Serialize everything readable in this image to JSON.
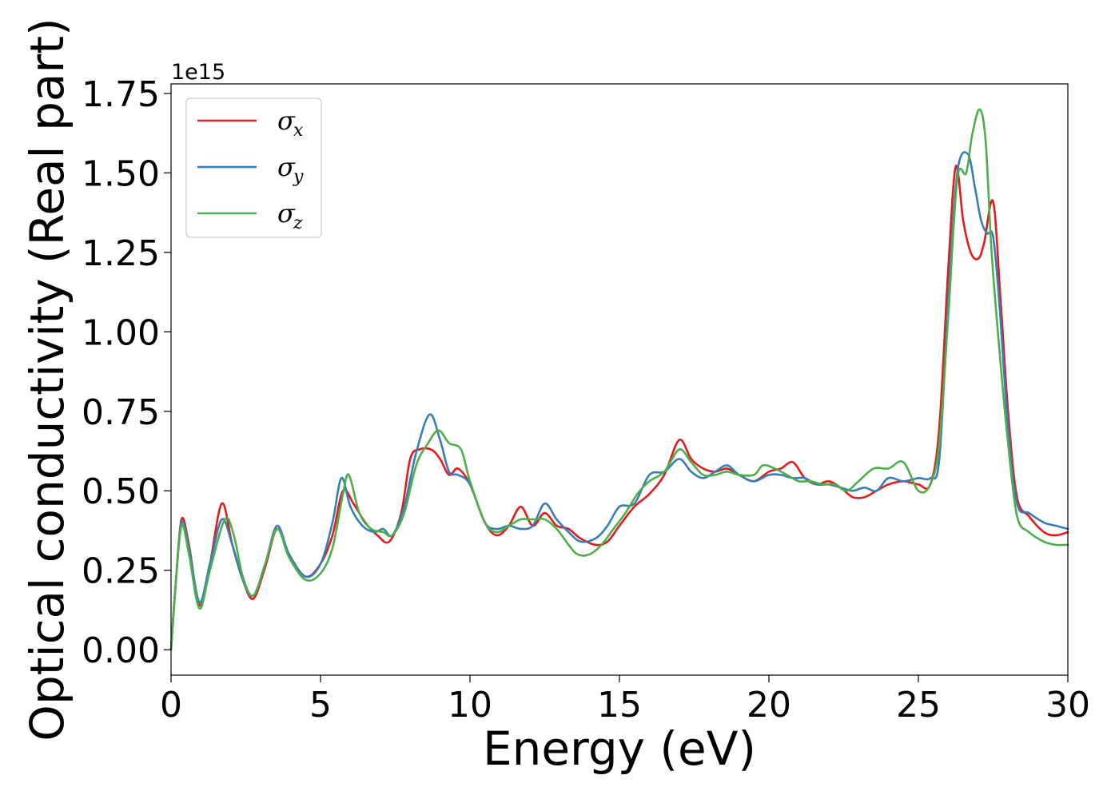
{
  "chart_data": {
    "type": "line",
    "xlabel": "Energy (eV)",
    "ylabel": "Optical conductivity (Real part)",
    "y_offset_text": "1e15",
    "y_scale_factor": 1000000000000000.0,
    "xlim": [
      0,
      30
    ],
    "ylim": [
      -0.08,
      1.78
    ],
    "x_ticks": [
      0,
      5,
      10,
      15,
      20,
      25,
      30
    ],
    "x_tick_labels": [
      "0",
      "5",
      "10",
      "15",
      "20",
      "25",
      "30"
    ],
    "y_ticks": [
      0.0,
      0.25,
      0.5,
      0.75,
      1.0,
      1.25,
      1.5,
      1.75
    ],
    "y_tick_labels": [
      "0.00",
      "0.25",
      "0.50",
      "0.75",
      "1.00",
      "1.25",
      "1.50",
      "1.75"
    ],
    "grid": false,
    "legend_position": "top-left",
    "series": [
      {
        "name": "σ_x",
        "label_symbol": "σ",
        "label_sub": "x",
        "color": "#e41a1c",
        "x": [
          0,
          0.15,
          0.35,
          0.6,
          0.95,
          1.3,
          1.7,
          2.05,
          2.4,
          2.75,
          3.15,
          3.55,
          3.95,
          4.5,
          5.0,
          5.4,
          5.75,
          6.1,
          6.5,
          6.9,
          7.3,
          7.7,
          8.0,
          8.3,
          8.7,
          9.0,
          9.3,
          9.6,
          10.0,
          10.5,
          10.9,
          11.3,
          11.7,
          12.1,
          12.5,
          12.9,
          13.3,
          13.7,
          14.2,
          14.6,
          15.0,
          15.5,
          16.0,
          16.5,
          17.0,
          17.4,
          17.8,
          18.2,
          18.6,
          19.0,
          19.5,
          20.0,
          20.4,
          20.8,
          21.2,
          21.6,
          22.0,
          22.4,
          22.8,
          23.2,
          23.6,
          24.0,
          24.5,
          25.0,
          25.4,
          25.7,
          26.0,
          26.25,
          26.5,
          26.75,
          27.0,
          27.2,
          27.5,
          27.75,
          28.0,
          28.3,
          28.7,
          29.2,
          29.6,
          30.0
        ],
        "y": [
          0.0,
          0.2,
          0.41,
          0.33,
          0.14,
          0.27,
          0.46,
          0.33,
          0.22,
          0.16,
          0.26,
          0.38,
          0.3,
          0.23,
          0.27,
          0.36,
          0.5,
          0.46,
          0.4,
          0.36,
          0.34,
          0.43,
          0.6,
          0.63,
          0.63,
          0.6,
          0.55,
          0.57,
          0.52,
          0.4,
          0.36,
          0.39,
          0.45,
          0.39,
          0.43,
          0.39,
          0.38,
          0.35,
          0.33,
          0.34,
          0.39,
          0.45,
          0.49,
          0.55,
          0.66,
          0.6,
          0.57,
          0.56,
          0.57,
          0.55,
          0.53,
          0.56,
          0.57,
          0.59,
          0.54,
          0.52,
          0.53,
          0.51,
          0.48,
          0.48,
          0.5,
          0.52,
          0.53,
          0.52,
          0.52,
          0.7,
          1.2,
          1.52,
          1.35,
          1.25,
          1.23,
          1.28,
          1.41,
          1.1,
          0.75,
          0.48,
          0.42,
          0.37,
          0.36,
          0.37
        ]
      },
      {
        "name": "σ_y",
        "label_symbol": "σ",
        "label_sub": "y",
        "color": "#377eb8",
        "x": [
          0,
          0.15,
          0.35,
          0.6,
          0.95,
          1.3,
          1.7,
          2.05,
          2.4,
          2.75,
          3.15,
          3.55,
          3.95,
          4.5,
          5.0,
          5.4,
          5.7,
          6.0,
          6.4,
          6.8,
          7.1,
          7.4,
          7.8,
          8.2,
          8.65,
          9.0,
          9.3,
          9.6,
          10.0,
          10.5,
          10.9,
          11.3,
          11.7,
          12.1,
          12.5,
          12.9,
          13.3,
          13.7,
          14.2,
          14.6,
          15.0,
          15.5,
          16.0,
          16.5,
          17.0,
          17.4,
          17.8,
          18.2,
          18.6,
          19.0,
          19.5,
          20.0,
          20.4,
          20.8,
          21.2,
          21.6,
          22.0,
          22.4,
          22.8,
          23.2,
          23.6,
          24.0,
          24.5,
          25.0,
          25.4,
          25.7,
          26.0,
          26.3,
          26.65,
          26.9,
          27.1,
          27.3,
          27.5,
          27.7,
          28.0,
          28.3,
          28.7,
          29.2,
          29.6,
          30.0
        ],
        "y": [
          0.0,
          0.2,
          0.4,
          0.32,
          0.15,
          0.27,
          0.41,
          0.33,
          0.22,
          0.17,
          0.27,
          0.39,
          0.3,
          0.23,
          0.27,
          0.4,
          0.54,
          0.45,
          0.39,
          0.37,
          0.38,
          0.36,
          0.45,
          0.62,
          0.74,
          0.66,
          0.56,
          0.55,
          0.52,
          0.4,
          0.38,
          0.39,
          0.38,
          0.39,
          0.46,
          0.41,
          0.37,
          0.34,
          0.35,
          0.39,
          0.45,
          0.46,
          0.55,
          0.56,
          0.6,
          0.56,
          0.54,
          0.56,
          0.58,
          0.55,
          0.53,
          0.55,
          0.55,
          0.54,
          0.54,
          0.52,
          0.52,
          0.51,
          0.5,
          0.51,
          0.5,
          0.54,
          0.53,
          0.54,
          0.54,
          0.6,
          1.1,
          1.5,
          1.56,
          1.45,
          1.35,
          1.31,
          1.3,
          1.1,
          0.7,
          0.46,
          0.43,
          0.4,
          0.39,
          0.38
        ]
      },
      {
        "name": "σ_z",
        "label_symbol": "σ",
        "label_sub": "z",
        "color": "#4daf4a",
        "x": [
          0,
          0.15,
          0.35,
          0.6,
          0.95,
          1.3,
          1.8,
          2.1,
          2.4,
          2.75,
          3.15,
          3.55,
          3.95,
          4.5,
          5.0,
          5.4,
          5.75,
          5.95,
          6.3,
          6.7,
          7.1,
          7.4,
          7.8,
          8.2,
          8.6,
          8.95,
          9.3,
          9.7,
          10.0,
          10.5,
          10.9,
          11.3,
          11.7,
          12.1,
          12.5,
          12.9,
          13.3,
          13.6,
          14.0,
          14.4,
          14.8,
          15.2,
          15.6,
          16.0,
          16.5,
          17.0,
          17.4,
          17.8,
          18.2,
          18.6,
          19.0,
          19.5,
          19.8,
          20.2,
          20.6,
          21.0,
          21.4,
          21.8,
          22.2,
          22.6,
          23.0,
          23.5,
          24.0,
          24.5,
          25.0,
          25.4,
          25.7,
          26.0,
          26.3,
          26.6,
          26.8,
          27.05,
          27.25,
          27.45,
          27.75,
          28.0,
          28.3,
          28.7,
          29.2,
          29.6,
          30.0
        ],
        "y": [
          0.0,
          0.2,
          0.39,
          0.3,
          0.13,
          0.25,
          0.41,
          0.36,
          0.23,
          0.17,
          0.27,
          0.38,
          0.29,
          0.22,
          0.24,
          0.32,
          0.49,
          0.55,
          0.43,
          0.38,
          0.37,
          0.36,
          0.43,
          0.58,
          0.65,
          0.69,
          0.65,
          0.63,
          0.53,
          0.4,
          0.37,
          0.39,
          0.41,
          0.41,
          0.41,
          0.38,
          0.33,
          0.3,
          0.3,
          0.33,
          0.38,
          0.43,
          0.49,
          0.53,
          0.56,
          0.63,
          0.59,
          0.55,
          0.55,
          0.56,
          0.55,
          0.55,
          0.58,
          0.57,
          0.55,
          0.53,
          0.53,
          0.52,
          0.52,
          0.5,
          0.53,
          0.57,
          0.57,
          0.59,
          0.5,
          0.52,
          0.65,
          1.05,
          1.48,
          1.5,
          1.62,
          1.7,
          1.6,
          1.25,
          0.9,
          0.65,
          0.42,
          0.37,
          0.34,
          0.33,
          0.33
        ]
      }
    ]
  }
}
